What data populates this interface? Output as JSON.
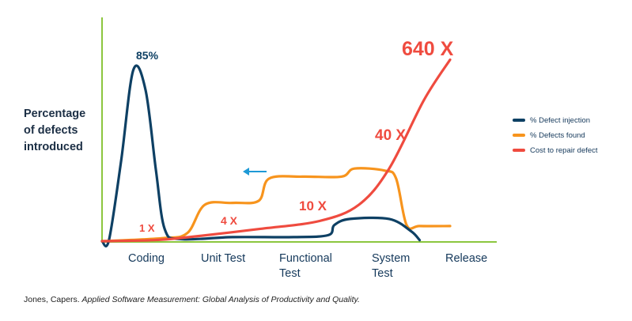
{
  "y_axis_label": "Percentage\nof defects\nintroduced",
  "phases": [
    "Coding",
    "Unit Test",
    "Functional\nTest",
    "System\nTest",
    "Release"
  ],
  "legend": [
    {
      "label": "% Defect injection",
      "color": "#0e4064"
    },
    {
      "label": "% Defects found",
      "color": "#f7941d"
    },
    {
      "label": "Cost to repair defect",
      "color": "#ef4b3f"
    }
  ],
  "annotations": {
    "peak": "85%",
    "cost_1x": "1 X",
    "cost_4x": "4 X",
    "cost_10x": "10 X",
    "cost_40x": "40 X",
    "cost_640x": "640 X"
  },
  "caption": {
    "author": "Jones, Capers.",
    "title": "Applied Software Measurement: Global Analysis of Productivity and Quality."
  },
  "chart_data": {
    "type": "line",
    "ylabel": "Percentage\nof defects\nintroduced",
    "categories": [
      "Coding",
      "Unit Test",
      "Functional\nTest",
      "System\nTest",
      "Release"
    ],
    "series": [
      {
        "name": "% Defect injection",
        "color": "#0e4064",
        "points": [
          [
            0,
            0
          ],
          [
            0.08,
            0.6
          ],
          [
            0.22,
            40
          ],
          [
            0.36,
            85
          ],
          [
            0.5,
            75
          ],
          [
            0.62,
            35
          ],
          [
            0.72,
            6
          ],
          [
            0.9,
            1
          ],
          [
            1.5,
            2
          ],
          [
            2.2,
            2
          ],
          [
            2.6,
            3
          ],
          [
            2.67,
            8
          ],
          [
            2.85,
            11
          ],
          [
            3.3,
            11
          ],
          [
            3.55,
            5
          ],
          [
            3.65,
            0.5
          ]
        ]
      },
      {
        "name": "% Defects found",
        "color": "#f7941d",
        "points": [
          [
            0,
            0
          ],
          [
            0.7,
            1.5
          ],
          [
            0.98,
            4
          ],
          [
            1.18,
            18
          ],
          [
            1.5,
            19
          ],
          [
            1.8,
            20
          ],
          [
            1.92,
            31
          ],
          [
            2.3,
            32
          ],
          [
            2.75,
            32
          ],
          [
            2.9,
            36
          ],
          [
            3.25,
            35
          ],
          [
            3.38,
            31
          ],
          [
            3.5,
            8
          ],
          [
            3.65,
            7.5
          ],
          [
            4,
            7.5
          ]
        ]
      },
      {
        "name": "Cost to repair defect",
        "color": "#ef4b3f",
        "points": [
          [
            0,
            0
          ],
          [
            0.6,
            0.5
          ],
          [
            1,
            2
          ],
          [
            1.8,
            6
          ],
          [
            2.5,
            10
          ],
          [
            2.95,
            18
          ],
          [
            3.3,
            36
          ],
          [
            3.7,
            70
          ],
          [
            4,
            90
          ]
        ]
      }
    ],
    "cost_multipliers": [
      {
        "label": "1 X",
        "phase": "Coding"
      },
      {
        "label": "4 X",
        "phase": "Unit Test"
      },
      {
        "label": "10 X",
        "phase": "Functional\nTest"
      },
      {
        "label": "40 X",
        "phase": "System\nTest"
      },
      {
        "label": "640 X",
        "phase": "Release"
      }
    ],
    "annotations": [
      "85%"
    ],
    "grid": false,
    "legend_position": "right"
  }
}
